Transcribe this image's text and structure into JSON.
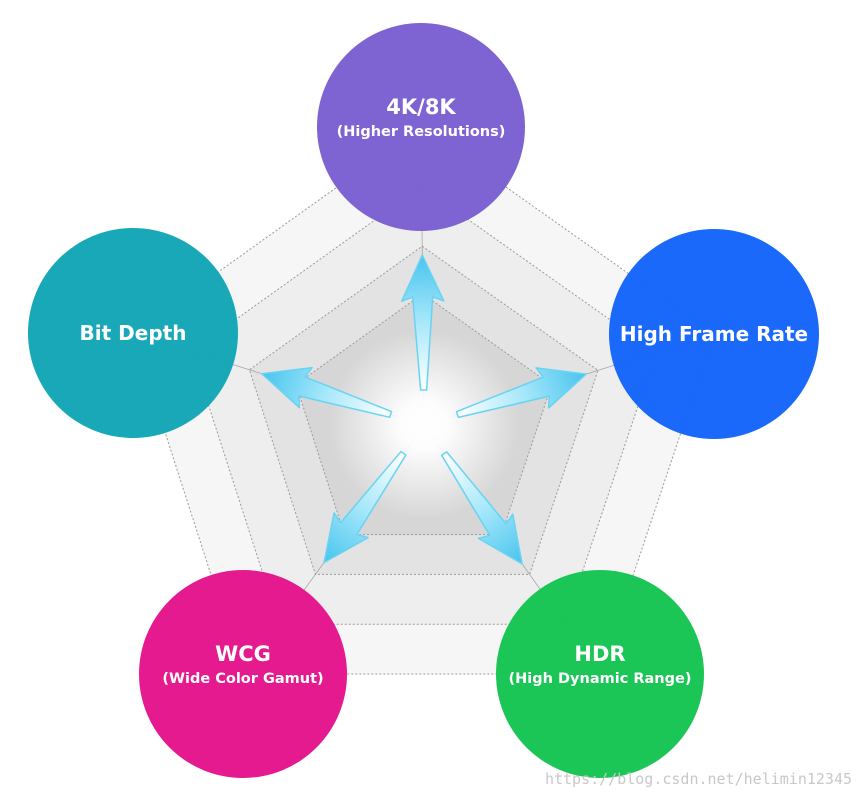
{
  "nodes": [
    {
      "id": "resolution",
      "title": "4K/8K",
      "subtitle": "(Higher Resolutions)",
      "color": "#7a5fd1"
    },
    {
      "id": "frame-rate",
      "title": "High Frame Rate",
      "subtitle": "",
      "color": "#1364fb"
    },
    {
      "id": "hdr",
      "title": "HDR",
      "subtitle": "(High Dynamic Range)",
      "color": "#14c452"
    },
    {
      "id": "wcg",
      "title": "WCG",
      "subtitle": "(Wide Color Gamut)",
      "color": "#e3138a"
    },
    {
      "id": "bit-depth",
      "title": "Bit Depth",
      "subtitle": "",
      "color": "#12a5b5"
    }
  ],
  "arrow_color": "#69d3f2",
  "watermark": "https://blog.csdn.net/helimin12345"
}
